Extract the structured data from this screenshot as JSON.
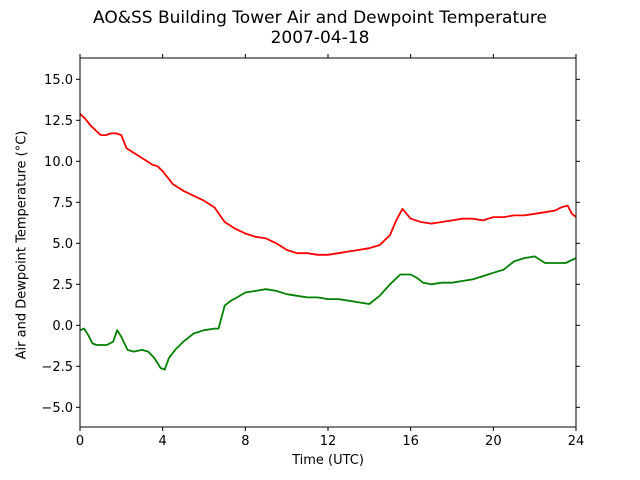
{
  "title": "AO&SS Building Tower Air and Dewpoint Temperature",
  "subtitle": "2007-04-18",
  "chart_data": {
    "type": "line",
    "title": "AO&SS Building Tower Air and Dewpoint Temperature",
    "subtitle": "2007-04-18",
    "xlabel": "Time (UTC)",
    "ylabel": "Air and Dewpoint Temperature (°C)",
    "xlim": [
      0,
      24
    ],
    "ylim": [
      -6.2,
      16.3
    ],
    "xticks": [
      0,
      4,
      8,
      12,
      16,
      20,
      24
    ],
    "yticks": [
      -5.0,
      -2.5,
      0.0,
      2.5,
      5.0,
      7.5,
      10.0,
      12.5,
      15.0
    ],
    "xtick_labels": [
      "0",
      "4",
      "8",
      "12",
      "16",
      "20",
      "24"
    ],
    "ytick_labels": [
      "−5.0",
      "−2.5",
      "0.0",
      "2.5",
      "5.0",
      "7.5",
      "10.0",
      "12.5",
      "15.0"
    ],
    "grid": false,
    "legend": "none",
    "series": [
      {
        "color": "#ff0000",
        "x": [
          0,
          0.25,
          0.5,
          0.75,
          1.0,
          1.25,
          1.5,
          1.75,
          2.0,
          2.25,
          2.5,
          3.0,
          3.5,
          3.75,
          4.0,
          4.5,
          5.0,
          5.5,
          6.0,
          6.5,
          7.0,
          7.5,
          8.0,
          8.5,
          9.0,
          9.5,
          10.0,
          10.5,
          11.0,
          11.5,
          12.0,
          12.5,
          13.0,
          13.5,
          14.0,
          14.5,
          15.0,
          15.3,
          15.6,
          16.0,
          16.5,
          17.0,
          17.5,
          18.0,
          18.5,
          19.0,
          19.5,
          20.0,
          20.5,
          21.0,
          21.5,
          22.0,
          22.5,
          23.0,
          23.3,
          23.6,
          23.8,
          24.0
        ],
        "y": [
          12.9,
          12.6,
          12.2,
          11.9,
          11.6,
          11.6,
          11.7,
          11.7,
          11.6,
          10.8,
          10.6,
          10.2,
          9.8,
          9.7,
          9.4,
          8.6,
          8.2,
          7.9,
          7.6,
          7.2,
          6.3,
          5.9,
          5.6,
          5.4,
          5.3,
          5.0,
          4.6,
          4.4,
          4.4,
          4.3,
          4.3,
          4.4,
          4.5,
          4.6,
          4.7,
          4.9,
          5.5,
          6.4,
          7.1,
          6.5,
          6.3,
          6.2,
          6.3,
          6.4,
          6.5,
          6.5,
          6.4,
          6.6,
          6.6,
          6.7,
          6.7,
          6.8,
          6.9,
          7.0,
          7.2,
          7.3,
          6.8,
          6.6
        ]
      },
      {
        "color": "#008000",
        "x": [
          0,
          0.2,
          0.4,
          0.6,
          0.8,
          1.0,
          1.3,
          1.6,
          1.8,
          2.0,
          2.3,
          2.6,
          3.0,
          3.3,
          3.6,
          3.9,
          4.1,
          4.3,
          4.6,
          5.0,
          5.5,
          6.0,
          6.5,
          6.7,
          7.0,
          7.3,
          7.6,
          8.0,
          8.5,
          9.0,
          9.5,
          10.0,
          10.5,
          11.0,
          11.5,
          12.0,
          12.5,
          13.0,
          13.5,
          14.0,
          14.5,
          15.0,
          15.5,
          16.0,
          16.3,
          16.6,
          17.0,
          17.5,
          18.0,
          18.5,
          19.0,
          19.5,
          20.0,
          20.5,
          21.0,
          21.5,
          22.0,
          22.5,
          23.0,
          23.5,
          24.0
        ],
        "y": [
          -0.3,
          -0.2,
          -0.6,
          -1.1,
          -1.2,
          -1.2,
          -1.2,
          -1.0,
          -0.3,
          -0.7,
          -1.5,
          -1.6,
          -1.5,
          -1.6,
          -2.0,
          -2.6,
          -2.7,
          -2.0,
          -1.5,
          -1.0,
          -0.5,
          -0.3,
          -0.2,
          -0.2,
          1.2,
          1.5,
          1.7,
          2.0,
          2.1,
          2.2,
          2.1,
          1.9,
          1.8,
          1.7,
          1.7,
          1.6,
          1.6,
          1.5,
          1.4,
          1.3,
          1.8,
          2.5,
          3.1,
          3.1,
          2.9,
          2.6,
          2.5,
          2.6,
          2.6,
          2.7,
          2.8,
          3.0,
          3.2,
          3.4,
          3.9,
          4.1,
          4.2,
          3.8,
          3.8,
          3.8,
          4.1
        ]
      }
    ]
  }
}
